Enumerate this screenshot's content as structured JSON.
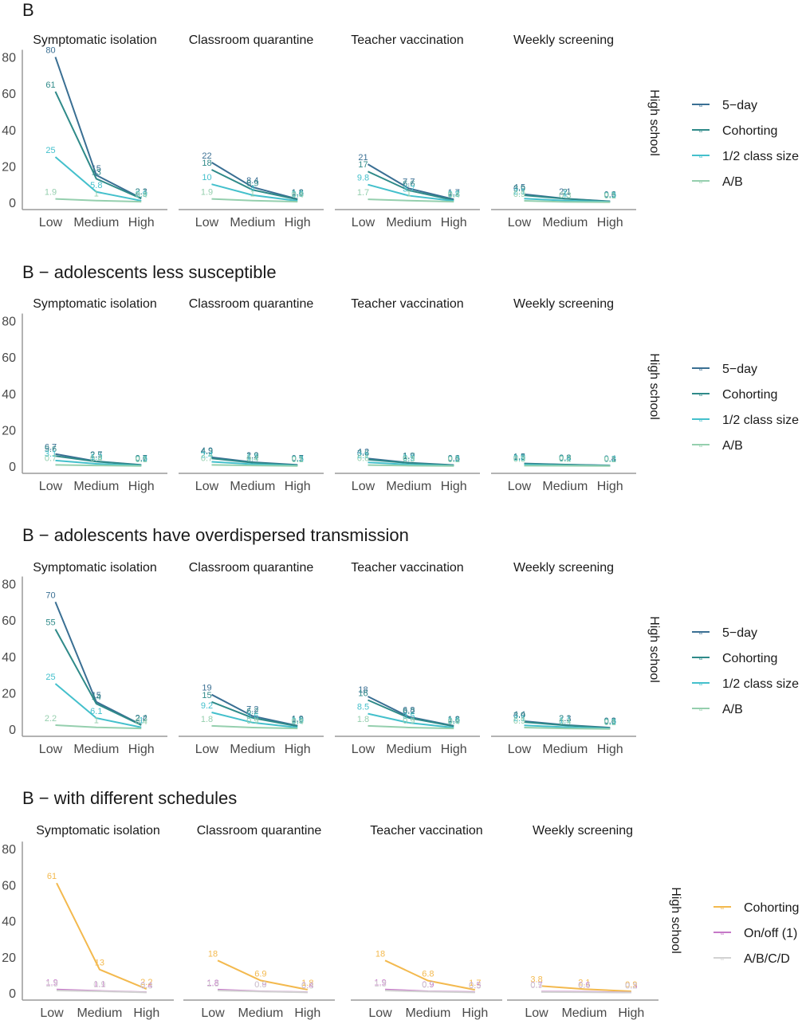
{
  "figure": {
    "strip_label": "High school",
    "x_categories": [
      "Low",
      "Medium",
      "High"
    ],
    "y_ticks": [
      0,
      20,
      40,
      60,
      80
    ],
    "facets": [
      "Symptomatic isolation",
      "Classroom quarantine",
      "Teacher vaccination",
      "Weekly screening"
    ]
  },
  "colors": {
    "5-day": "#3a6f93",
    "Cohorting": "#2f8a89",
    "1/2 class size": "#44c0cc",
    "A/B": "#95cfae",
    "Cohorting (schedules)": "#f3b94e",
    "On/off (1)": "#c678c8",
    "A/B/C/D": "#d2d2d2"
  },
  "chart_data": [
    {
      "type": "line",
      "title": "B",
      "row_label": "High school",
      "categories": [
        "Low",
        "Medium",
        "High"
      ],
      "ylim": [
        0,
        85
      ],
      "legend": [
        "5−day",
        "Cohorting",
        "1/2 class size",
        "A/B"
      ],
      "facets": [
        {
          "name": "Symptomatic isolation",
          "series": [
            {
              "name": "5−day",
              "values": [
                80,
                15,
                2.3
              ]
            },
            {
              "name": "Cohorting",
              "values": [
                61,
                13,
                2.1
              ]
            },
            {
              "name": "1/2 class size",
              "values": [
                25,
                5.8,
                0.9
              ]
            },
            {
              "name": "A/B",
              "values": [
                1.9,
                1,
                0.4
              ]
            }
          ]
        },
        {
          "name": "Classroom quarantine",
          "series": [
            {
              "name": "5−day",
              "values": [
                22,
                8.4,
                1.8
              ]
            },
            {
              "name": "Cohorting",
              "values": [
                18,
                6.9,
                1.6
              ]
            },
            {
              "name": "1/2 class size",
              "values": [
                10,
                4,
                0.8
              ]
            },
            {
              "name": "A/B",
              "values": [
                1.9,
                1,
                0.4
              ]
            }
          ]
        },
        {
          "name": "Teacher vaccination",
          "series": [
            {
              "name": "5−day",
              "values": [
                21,
                7.7,
                1.7
              ]
            },
            {
              "name": "Cohorting",
              "values": [
                17,
                6.6,
                1.2
              ]
            },
            {
              "name": "1/2 class size",
              "values": [
                9.8,
                3.7,
                0.8
              ]
            },
            {
              "name": "A/B",
              "values": [
                1.7,
                1,
                0.4
              ]
            }
          ]
        },
        {
          "name": "Weekly screening",
          "series": [
            {
              "name": "5−day",
              "values": [
                4.5,
                2.1,
                0.6
              ]
            },
            {
              "name": "Cohorting",
              "values": [
                3.9,
                2,
                0.5
              ]
            },
            {
              "name": "1/2 class size",
              "values": [
                2.1,
                1,
                0.3
              ]
            },
            {
              "name": "A/B",
              "values": [
                0.9,
                0.3,
                0.1
              ]
            }
          ]
        }
      ]
    },
    {
      "type": "line",
      "title": "B − adolescents less susceptible",
      "row_label": "High school",
      "categories": [
        "Low",
        "Medium",
        "High"
      ],
      "ylim": [
        0,
        85
      ],
      "legend": [
        "5−day",
        "Cohorting",
        "1/2 class size",
        "A/B"
      ],
      "facets": [
        {
          "name": "Symptomatic isolation",
          "series": [
            {
              "name": "5−day",
              "values": [
                6.7,
                2.7,
                0.7
              ]
            },
            {
              "name": "Cohorting",
              "values": [
                5.6,
                2.5,
                0.6
              ]
            },
            {
              "name": "1/2 class size",
              "values": [
                3.1,
                1.3,
                0.3
              ]
            },
            {
              "name": "A/B",
              "values": [
                0.7,
                0.4,
                0.1
              ]
            }
          ]
        },
        {
          "name": "Classroom quarantine",
          "series": [
            {
              "name": "5−day",
              "values": [
                4.9,
                2.2,
                0.7
              ]
            },
            {
              "name": "Cohorting",
              "values": [
                4.3,
                1.9,
                0.5
              ]
            },
            {
              "name": "1/2 class size",
              "values": [
                2.4,
                1.1,
                0.3
              ]
            },
            {
              "name": "A/B",
              "values": [
                0.7,
                0.4,
                0.1
              ]
            }
          ]
        },
        {
          "name": "Teacher vaccination",
          "series": [
            {
              "name": "5−day",
              "values": [
                4.2,
                1.9,
                0.6
              ]
            },
            {
              "name": "Cohorting",
              "values": [
                3.6,
                1.7,
                0.5
              ]
            },
            {
              "name": "1/2 class size",
              "values": [
                2.1,
                0.9,
                0.2
              ]
            },
            {
              "name": "A/B",
              "values": [
                0.6,
                0.3,
                0.1
              ]
            }
          ]
        },
        {
          "name": "Weekly screening",
          "series": [
            {
              "name": "5−day",
              "values": [
                1.5,
                0.9,
                0.4
              ]
            },
            {
              "name": "Cohorting",
              "values": [
                1.3,
                0.8,
                0.3
              ]
            },
            {
              "name": "1/2 class size",
              "values": [
                0.8,
                0.4,
                0.2
              ]
            },
            {
              "name": "A/B",
              "values": [
                0.3,
                0.2,
                0.1
              ]
            }
          ]
        }
      ]
    },
    {
      "type": "line",
      "title": "B − adolescents have overdispersed transmission",
      "row_label": "High school",
      "categories": [
        "Low",
        "Medium",
        "High"
      ],
      "ylim": [
        0,
        85
      ],
      "legend": [
        "5−day",
        "Cohorting",
        "1/2 class size",
        "A/B"
      ],
      "facets": [
        {
          "name": "Symptomatic isolation",
          "series": [
            {
              "name": "5−day",
              "values": [
                70,
                15,
                2.4
              ]
            },
            {
              "name": "Cohorting",
              "values": [
                55,
                14,
                2.2
              ]
            },
            {
              "name": "1/2 class size",
              "values": [
                25,
                6.1,
                1
              ]
            },
            {
              "name": "A/B",
              "values": [
                2.2,
                1,
                0.4
              ]
            }
          ]
        },
        {
          "name": "Classroom quarantine",
          "series": [
            {
              "name": "5−day",
              "values": [
                19,
                7.2,
                1.9
              ]
            },
            {
              "name": "Cohorting",
              "values": [
                15,
                6.2,
                1.6
              ]
            },
            {
              "name": "1/2 class size",
              "values": [
                9.2,
                3.6,
                0.9
              ]
            },
            {
              "name": "A/B",
              "values": [
                1.8,
                0.9,
                0.4
              ]
            }
          ]
        },
        {
          "name": "Teacher vaccination",
          "series": [
            {
              "name": "5−day",
              "values": [
                18,
                6.8,
                1.8
              ]
            },
            {
              "name": "Cohorting",
              "values": [
                16,
                6.2,
                1.6
              ]
            },
            {
              "name": "1/2 class size",
              "values": [
                8.5,
                3.5,
                0.8
              ]
            },
            {
              "name": "A/B",
              "values": [
                1.8,
                0.9,
                0.4
              ]
            }
          ]
        },
        {
          "name": "Weekly screening",
          "series": [
            {
              "name": "5−day",
              "values": [
                4.4,
                2.3,
                0.8
              ]
            },
            {
              "name": "Cohorting",
              "values": [
                3.9,
                2.1,
                0.6
              ]
            },
            {
              "name": "1/2 class size",
              "values": [
                2.1,
                1.1,
                0.3
              ]
            },
            {
              "name": "A/B",
              "values": [
                0.9,
                0.4,
                0.1
              ]
            }
          ]
        }
      ]
    },
    {
      "type": "line",
      "title": "B − with different schedules",
      "row_label": "High school",
      "categories": [
        "Low",
        "Medium",
        "High"
      ],
      "ylim": [
        0,
        85
      ],
      "legend": [
        "Cohorting",
        "On/off (1)",
        "A/B/C/D"
      ],
      "facets": [
        {
          "name": "Symptomatic isolation",
          "series": [
            {
              "name": "Cohorting",
              "values": [
                61,
                13,
                2.2
              ]
            },
            {
              "name": "On/off (1)",
              "values": [
                1.9,
                1.1,
                0.4
              ]
            },
            {
              "name": "A/B/C/D",
              "values": [
                1.3,
                0.9,
                0.3
              ]
            }
          ]
        },
        {
          "name": "Classroom quarantine",
          "series": [
            {
              "name": "Cohorting",
              "values": [
                18,
                6.9,
                1.8
              ]
            },
            {
              "name": "On/off (1)",
              "values": [
                1.8,
                0.9,
                0.4
              ]
            },
            {
              "name": "A/B/C/D",
              "values": [
                1.3,
                0.8,
                0.3
              ]
            }
          ]
        },
        {
          "name": "Teacher vaccination",
          "series": [
            {
              "name": "Cohorting",
              "values": [
                18,
                6.8,
                1.7
              ]
            },
            {
              "name": "On/off (1)",
              "values": [
                1.9,
                0.9,
                0.5
              ]
            },
            {
              "name": "A/B/C/D",
              "values": [
                1.3,
                0.7,
                0.3
              ]
            }
          ]
        },
        {
          "name": "Weekly screening",
          "series": [
            {
              "name": "Cohorting",
              "values": [
                3.8,
                2.1,
                0.9
              ]
            },
            {
              "name": "On/off (1)",
              "values": [
                0.7,
                0.6,
                0.3
              ]
            },
            {
              "name": "A/B/C/D",
              "values": [
                0.5,
                0.4,
                0.2
              ]
            }
          ]
        }
      ]
    }
  ]
}
